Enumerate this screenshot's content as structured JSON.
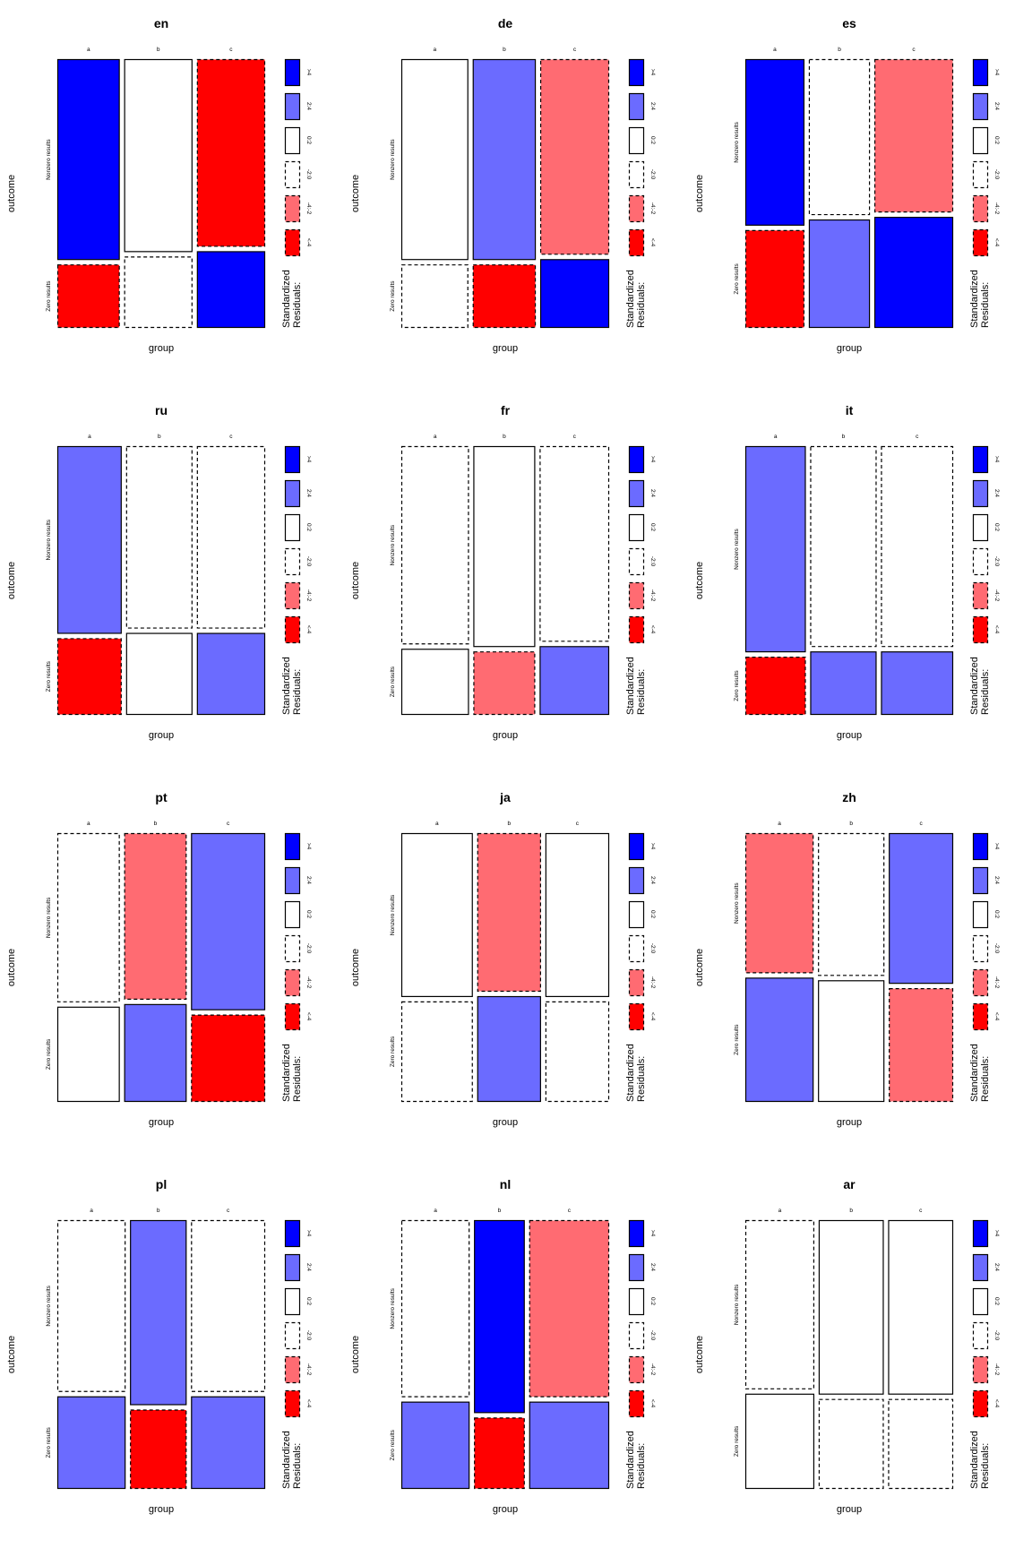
{
  "colors": {
    "strong_pos": "#0000ff",
    "pos": "#6b6bff",
    "neutral": "#ffffff",
    "neg": "#ff6b72",
    "strong_neg": "#ff0000",
    "border": "#000000"
  },
  "shared": {
    "xlabel": "group",
    "ylabel": "outcome",
    "columns": [
      "a",
      "b",
      "c"
    ],
    "rows": [
      "Nonzero results",
      "Zero results"
    ],
    "legend": {
      "title_line1": "Standardized",
      "title_line2": "Residuals:",
      "entries": [
        {
          "label": ">4",
          "fill": "strong_pos",
          "dashed": false
        },
        {
          "label": "2:4",
          "fill": "pos",
          "dashed": false
        },
        {
          "label": "0:2",
          "fill": "neutral",
          "dashed": false
        },
        {
          "label": "-2:0",
          "fill": "neutral",
          "dashed": true
        },
        {
          "label": "-4:-2",
          "fill": "neg",
          "dashed": true
        },
        {
          "label": "<-4",
          "fill": "strong_neg",
          "dashed": true
        }
      ]
    }
  },
  "chart_data": [
    {
      "type": "mosaic",
      "title": "en",
      "col_widths": [
        0.32,
        0.35,
        0.35
      ],
      "nonzero_share": [
        0.76,
        0.73,
        0.71
      ],
      "residual_class": {
        "nonzero": [
          "strong_pos",
          "neutral_pos",
          "strong_neg"
        ],
        "zero": [
          "strong_neg",
          "neutral_neg",
          "strong_pos"
        ]
      }
    },
    {
      "type": "mosaic",
      "title": "de",
      "col_widths": [
        0.34,
        0.32,
        0.35
      ],
      "nonzero_share": [
        0.76,
        0.76,
        0.74
      ],
      "residual_class": {
        "nonzero": [
          "neutral_pos",
          "pos",
          "neg"
        ],
        "zero": [
          "neutral_neg",
          "strong_neg",
          "strong_pos"
        ]
      }
    },
    {
      "type": "mosaic",
      "title": "es",
      "col_widths": [
        0.3,
        0.31,
        0.4
      ],
      "nonzero_share": [
        0.63,
        0.59,
        0.58
      ],
      "residual_class": {
        "nonzero": [
          "strong_pos",
          "neutral_neg",
          "neg"
        ],
        "zero": [
          "strong_neg",
          "pos",
          "strong_pos"
        ]
      }
    },
    {
      "type": "mosaic",
      "title": "ru",
      "col_widths": [
        0.33,
        0.34,
        0.35
      ],
      "nonzero_share": [
        0.71,
        0.69,
        0.69
      ],
      "residual_class": {
        "nonzero": [
          "pos",
          "neutral_neg",
          "neutral_neg"
        ],
        "zero": [
          "strong_neg",
          "neutral_pos",
          "pos"
        ]
      }
    },
    {
      "type": "mosaic",
      "title": "fr",
      "col_widths": [
        0.35,
        0.32,
        0.36
      ],
      "nonzero_share": [
        0.75,
        0.76,
        0.74
      ],
      "residual_class": {
        "nonzero": [
          "neutral_neg",
          "neutral_pos",
          "neutral_neg"
        ],
        "zero": [
          "neutral_pos",
          "neg",
          "pos"
        ]
      }
    },
    {
      "type": "mosaic",
      "title": "it",
      "col_widths": [
        0.31,
        0.34,
        0.37
      ],
      "nonzero_share": [
        0.78,
        0.76,
        0.76
      ],
      "residual_class": {
        "nonzero": [
          "pos",
          "neutral_neg",
          "neutral_neg"
        ],
        "zero": [
          "strong_neg",
          "pos",
          "pos"
        ]
      }
    },
    {
      "type": "mosaic",
      "title": "pt",
      "col_widths": [
        0.32,
        0.32,
        0.38
      ],
      "nonzero_share": [
        0.64,
        0.63,
        0.67
      ],
      "residual_class": {
        "nonzero": [
          "neutral_neg",
          "neg",
          "pos"
        ],
        "zero": [
          "neutral_pos",
          "pos",
          "strong_neg"
        ]
      }
    },
    {
      "type": "mosaic",
      "title": "ja",
      "col_widths": [
        0.37,
        0.33,
        0.33
      ],
      "nonzero_share": [
        0.62,
        0.6,
        0.62
      ],
      "residual_class": {
        "nonzero": [
          "neutral_pos",
          "neg",
          "neutral_pos"
        ],
        "zero": [
          "neutral_neg",
          "pos",
          "neutral_neg"
        ]
      }
    },
    {
      "type": "mosaic",
      "title": "zh",
      "col_widths": [
        0.35,
        0.34,
        0.33
      ],
      "nonzero_share": [
        0.53,
        0.54,
        0.57
      ],
      "residual_class": {
        "nonzero": [
          "neg",
          "neutral_neg",
          "pos"
        ],
        "zero": [
          "pos",
          "neutral_pos",
          "neg"
        ]
      }
    },
    {
      "type": "mosaic",
      "title": "pl",
      "col_widths": [
        0.35,
        0.29,
        0.38
      ],
      "nonzero_share": [
        0.65,
        0.7,
        0.65
      ],
      "residual_class": {
        "nonzero": [
          "neutral_neg",
          "pos",
          "neutral_neg"
        ],
        "zero": [
          "pos",
          "strong_neg",
          "pos"
        ]
      }
    },
    {
      "type": "mosaic",
      "title": "nl",
      "col_widths": [
        0.35,
        0.26,
        0.41
      ],
      "nonzero_share": [
        0.67,
        0.73,
        0.67
      ],
      "residual_class": {
        "nonzero": [
          "neutral_neg",
          "strong_pos",
          "neg"
        ],
        "zero": [
          "pos",
          "strong_neg",
          "pos"
        ]
      }
    },
    {
      "type": "mosaic",
      "title": "ar",
      "col_widths": [
        0.35,
        0.33,
        0.33
      ],
      "nonzero_share": [
        0.64,
        0.66,
        0.66
      ],
      "residual_class": {
        "nonzero": [
          "neutral_neg",
          "neutral_pos",
          "neutral_pos"
        ],
        "zero": [
          "neutral_pos",
          "neutral_neg",
          "neutral_neg"
        ]
      }
    }
  ]
}
